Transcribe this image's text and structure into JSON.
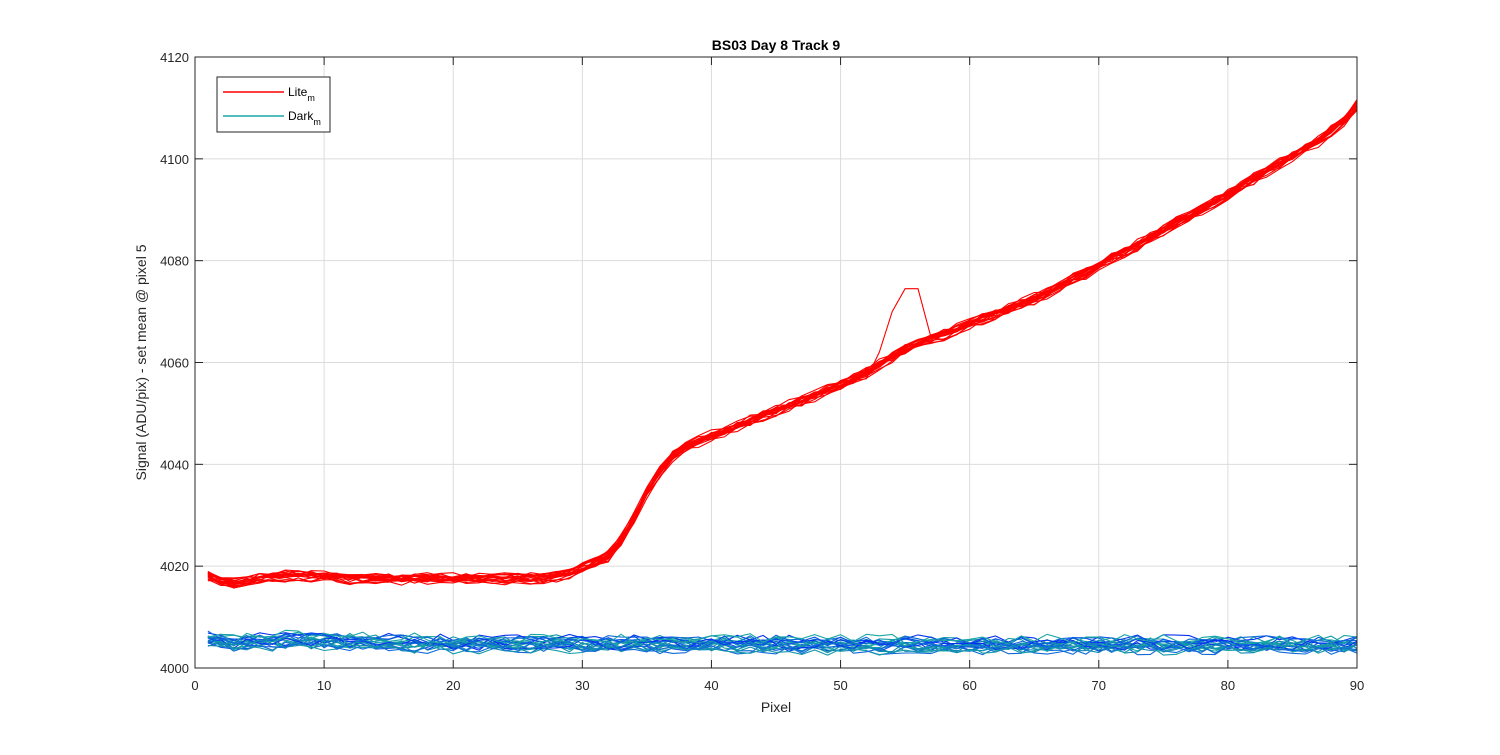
{
  "chart_data": {
    "type": "line",
    "title": "BS03 Day 8 Track 9",
    "xlabel": "Pixel",
    "ylabel": "Signal (ADU/pix) - set mean @ pixel 5",
    "xlim": [
      0,
      90
    ],
    "ylim": [
      4000,
      4120
    ],
    "xticks": [
      0,
      10,
      20,
      30,
      40,
      50,
      60,
      70,
      80,
      90
    ],
    "yticks": [
      4000,
      4020,
      4040,
      4060,
      4080,
      4100,
      4120
    ],
    "grid": true,
    "legend_position": "top-left",
    "legend": [
      {
        "base": "Lite",
        "sub": "m",
        "color": "#ff0000"
      },
      {
        "base": "Dark",
        "sub": "m",
        "color": "#1aa6a6"
      }
    ],
    "x": [
      1,
      2,
      3,
      4,
      5,
      6,
      7,
      8,
      9,
      10,
      11,
      12,
      13,
      14,
      15,
      16,
      17,
      18,
      19,
      20,
      21,
      22,
      23,
      24,
      25,
      26,
      27,
      28,
      29,
      30,
      31,
      32,
      33,
      34,
      35,
      36,
      37,
      38,
      39,
      40,
      41,
      42,
      43,
      44,
      45,
      46,
      47,
      48,
      49,
      50,
      51,
      52,
      53,
      54,
      55,
      56,
      57,
      58,
      59,
      60,
      61,
      62,
      63,
      64,
      65,
      66,
      67,
      68,
      69,
      70,
      71,
      72,
      73,
      74,
      75,
      76,
      77,
      78,
      79,
      80,
      81,
      82,
      83,
      84,
      85,
      86,
      87,
      88,
      89,
      90
    ],
    "series": [
      {
        "group": "Lite",
        "color": "#ff0000",
        "count": 20,
        "mean": [
          4018,
          4017,
          4016.5,
          4017,
          4017.5,
          4018,
          4018,
          4018,
          4018,
          4018,
          4018,
          4017.5,
          4017.5,
          4017.5,
          4017.5,
          4017.5,
          4017.5,
          4017.5,
          4017.5,
          4017.5,
          4017.5,
          4017.5,
          4017.5,
          4017.5,
          4017.5,
          4017.5,
          4017.5,
          4018,
          4018.5,
          4019.5,
          4020.5,
          4022,
          4025,
          4029.5,
          4034.5,
          4038.5,
          4041.5,
          4043.5,
          4044.5,
          4045.5,
          4046.5,
          4047.5,
          4048.5,
          4049.5,
          4050.5,
          4051.5,
          4052.5,
          4053.5,
          4054.5,
          4055.5,
          4056.5,
          4058,
          4059.5,
          4061,
          4062.5,
          4063.5,
          4064.5,
          4065.5,
          4066.5,
          4067.5,
          4068.5,
          4069.5,
          4070.5,
          4071.5,
          4072.5,
          4073.5,
          4075,
          4076.5,
          4077.5,
          4079,
          4080.5,
          4081.5,
          4083,
          4084.5,
          4086,
          4087.5,
          4088.5,
          4090,
          4091.5,
          4093,
          4094.5,
          4096,
          4097.5,
          4099,
          4100.5,
          4102,
          4103.5,
          4105.5,
          4107.5,
          4110.5
        ],
        "spread": 1.5,
        "spike": {
          "x": [
            53,
            54,
            55,
            56,
            57
          ],
          "y": [
            4062,
            4070,
            4074.5,
            4074.5,
            4065
          ]
        }
      },
      {
        "group": "Dark",
        "colors": [
          "#1aa6a6",
          "#159aa8",
          "#118cb0",
          "#0f6ad8",
          "#0a50e8",
          "#0733f0"
        ],
        "count": 22,
        "mean": [
          4006,
          4005.5,
          4005,
          4005.2,
          4005.5,
          4005.5,
          4005.6,
          4005.8,
          4005.7,
          4005.5,
          4005.5,
          4005.4,
          4005.5,
          4005.3,
          4005.2,
          4005.2,
          4005.1,
          4005,
          4005,
          4005,
          4005,
          4005,
          4005,
          4005,
          4004.9,
          4004.9,
          4005,
          4005,
          4005,
          4005,
          4005,
          4005,
          4005,
          4005,
          4005,
          4005,
          4005,
          4004.9,
          4004.9,
          4005,
          4005,
          4005,
          4005,
          4004.9,
          4004.9,
          4004.8,
          4004.8,
          4004.8,
          4004.8,
          4004.8,
          4004.8,
          4004.8,
          4004.8,
          4004.8,
          4004.8,
          4004.8,
          4004.8,
          4004.8,
          4004.8,
          4004.8,
          4004.8,
          4004.8,
          4004.8,
          4004.8,
          4004.8,
          4004.8,
          4004.8,
          4004.8,
          4004.8,
          4004.8,
          4004.8,
          4004.8,
          4004.8,
          4004.8,
          4004.8,
          4004.8,
          4004.8,
          4004.8,
          4004.8,
          4004.8,
          4004.8,
          4004.8,
          4004.8,
          4004.8,
          4004.8,
          4004.8,
          4004.8,
          4004.8,
          4004.8,
          4005
        ],
        "spread": 2.6
      }
    ]
  }
}
